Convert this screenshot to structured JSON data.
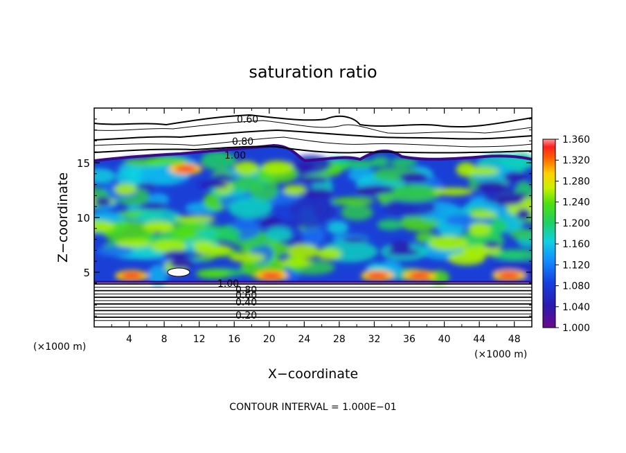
{
  "chart_data": {
    "type": "heatmap",
    "title": "saturation ratio",
    "xlabel": "X−coordinate",
    "ylabel": "Z−coordinate",
    "x_unit": "(×1000 m)",
    "footer": "CONTOUR INTERVAL = 1.000E−01",
    "xlim": [
      0,
      50
    ],
    "ylim": [
      0,
      20
    ],
    "x_ticks": [
      "4",
      "8",
      "12",
      "16",
      "20",
      "24",
      "28",
      "32",
      "36",
      "40",
      "44",
      "48"
    ],
    "y_ticks": [
      "5",
      "10",
      "15"
    ],
    "colorbar_ticks": [
      "1.000",
      "1.040",
      "1.080",
      "1.120",
      "1.160",
      "1.200",
      "1.240",
      "1.280",
      "1.320",
      "1.360"
    ],
    "colorbar_range": [
      1.0,
      1.36
    ],
    "contour_labels": [
      "0.60",
      "0.80",
      "1.00",
      "1.00",
      "0.80",
      "0.60",
      "0.40",
      "0.20"
    ],
    "cloud_layer_z": [
      4.2,
      15.2
    ]
  }
}
